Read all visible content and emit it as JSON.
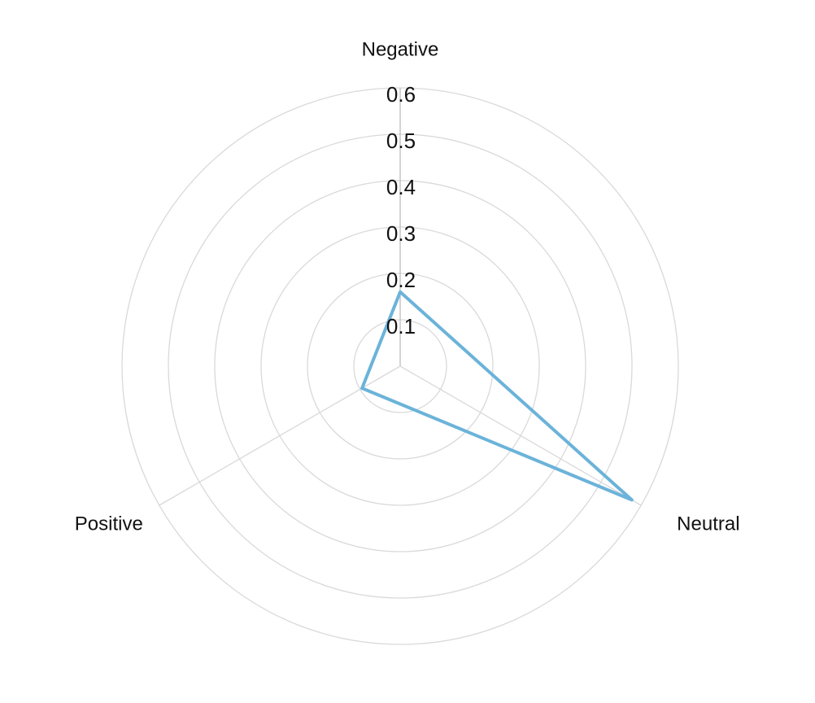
{
  "chart_data": {
    "type": "radar",
    "categories": [
      "Negative",
      "Neutral",
      "Positive"
    ],
    "series": [
      {
        "values": [
          0.16,
          0.577,
          0.095
        ],
        "color": "#6bb3d9"
      }
    ],
    "radial_ticks": [
      "0.1",
      "0.2",
      "0.3",
      "0.4",
      "0.5",
      "0.6"
    ],
    "rlim": [
      0,
      0.6
    ],
    "grid": true,
    "grid_color": "#d9d9d9",
    "text_color": "#111111"
  }
}
